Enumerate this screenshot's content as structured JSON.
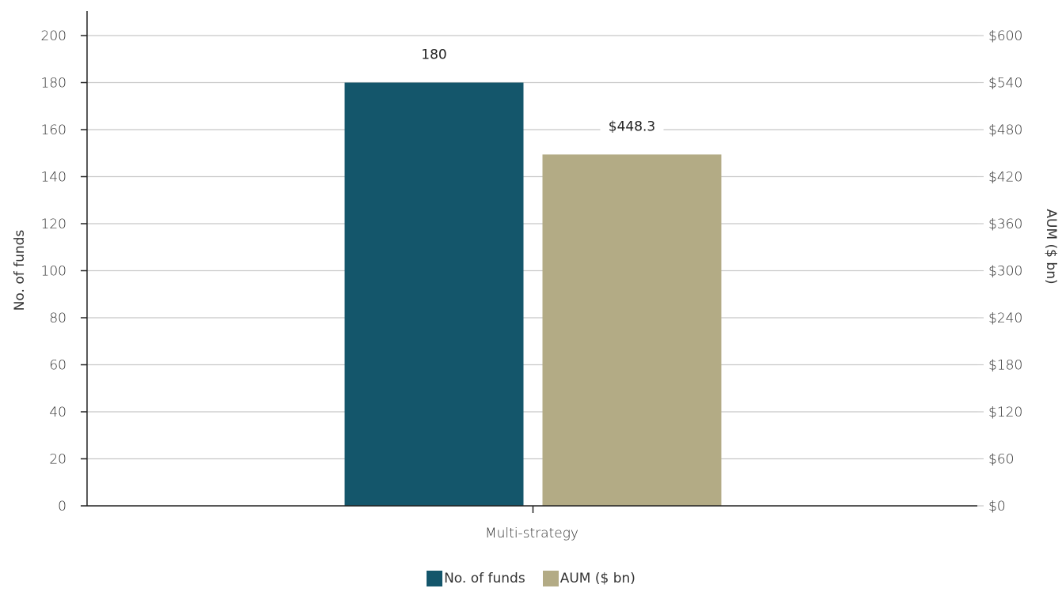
{
  "chart_data": {
    "type": "bar",
    "categories": [
      "Multi-strategy"
    ],
    "series": [
      {
        "name": "No. of funds",
        "axis": "left",
        "values": [
          180
        ],
        "color": "#14566B",
        "data_label": "180"
      },
      {
        "name": "AUM ($ bn)",
        "axis": "right",
        "values": [
          448.3
        ],
        "color": "#B3AB85",
        "data_label": "$448.3"
      }
    ],
    "y_left": {
      "label": "No. of funds",
      "range": [
        0,
        200
      ],
      "ticks": [
        0,
        20,
        40,
        60,
        80,
        100,
        120,
        140,
        160,
        180,
        200
      ],
      "tick_labels": [
        "0",
        "20",
        "40",
        "60",
        "80",
        "100",
        "120",
        "140",
        "160",
        "180",
        "200"
      ]
    },
    "y_right": {
      "label": "AUM ($ bn)",
      "range": [
        0,
        600
      ],
      "ticks": [
        0,
        60,
        120,
        180,
        240,
        300,
        360,
        420,
        480,
        540,
        600
      ],
      "tick_labels": [
        "$0",
        "$60",
        "$120",
        "$180",
        "$240",
        "$300",
        "$360",
        "$420",
        "$480",
        "$540",
        "$600"
      ]
    },
    "grid": true,
    "legend_position": "bottom-center"
  }
}
